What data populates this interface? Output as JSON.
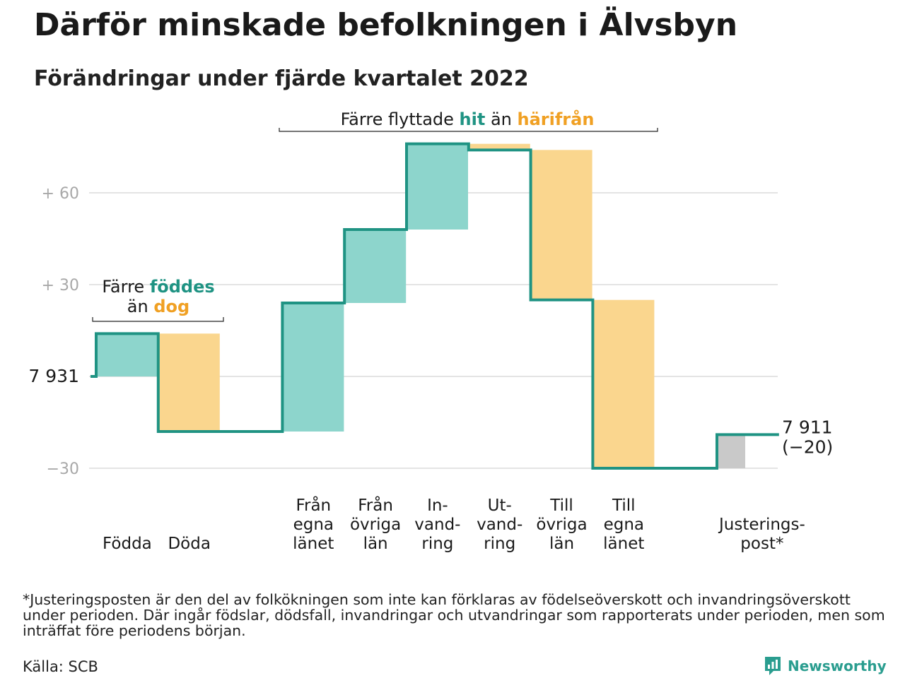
{
  "title": "Därför minskade befolkningen i Älvsbyn",
  "subtitle": "Förändringar under fjärde kvartalet 2022",
  "footnote": "*Justeringsposten är den del av folkökningen som inte kan förklaras av födelseöverskott och invandringsöverskott under perioden. Där ingår födslar, dödsfall, invandringar och utvandringar som rapporterats under perioden, men som inträffat före periodens början.",
  "source": "Källa: SCB",
  "logo": {
    "name": "Newsworthy",
    "icon": "newsworthy-logo-icon"
  },
  "colors": {
    "increase": "#8dd5cc",
    "decrease": "#fad68e",
    "adjustment": "#c9c9c9",
    "line": "#1f9383",
    "teal_text": "#1f9383",
    "orange_text": "#f0a023"
  },
  "chart_data": {
    "type": "waterfall",
    "start": {
      "label": "7 931",
      "value": 7931
    },
    "end": {
      "label": "7 911",
      "change_label": "(−20)",
      "value": 7911
    },
    "y_ticks": [
      {
        "value": 60,
        "label": "+ 60"
      },
      {
        "value": 30,
        "label": "+ 30"
      },
      {
        "value": -30,
        "label": "−30"
      }
    ],
    "ylim": [
      -31,
      76
    ],
    "grid": true,
    "steps": [
      {
        "label": [
          "Födda"
        ],
        "value": 14,
        "kind": "increase"
      },
      {
        "label": [
          "Döda"
        ],
        "value": -32,
        "kind": "decrease"
      },
      {
        "label": [],
        "value": 0,
        "kind": "none"
      },
      {
        "label": [
          "Från",
          "egna",
          "länet"
        ],
        "value": 42,
        "kind": "increase"
      },
      {
        "label": [
          "Från",
          "övriga",
          "län"
        ],
        "value": 24,
        "kind": "increase"
      },
      {
        "label": [
          "In-",
          "vand-",
          "ring"
        ],
        "value": 28,
        "kind": "increase"
      },
      {
        "label": [
          "Ut-",
          "vand-",
          "ring"
        ],
        "value": -2,
        "kind": "decrease"
      },
      {
        "label": [
          "Till",
          "övriga",
          "län"
        ],
        "value": -49,
        "kind": "decrease"
      },
      {
        "label": [
          "Till",
          "egna",
          "länet"
        ],
        "value": -55,
        "kind": "decrease"
      },
      {
        "label": [],
        "value": 0,
        "kind": "none"
      },
      {
        "label": [
          "Justerings-",
          "post*"
        ],
        "value": 11,
        "kind": "adjustment"
      }
    ],
    "annotations": [
      {
        "parts": [
          {
            "text": "Färre ",
            "color": "dark"
          },
          {
            "text": "föddes",
            "color": "teal"
          }
        ],
        "parts2": [
          {
            "text": "än ",
            "color": "dark"
          },
          {
            "text": "dog",
            "color": "orange"
          }
        ]
      },
      {
        "parts": [
          {
            "text": "Färre flyttade ",
            "color": "dark"
          },
          {
            "text": "hit",
            "color": "teal"
          },
          {
            "text": " än ",
            "color": "dark"
          },
          {
            "text": "härifrån",
            "color": "orange"
          }
        ]
      }
    ]
  }
}
